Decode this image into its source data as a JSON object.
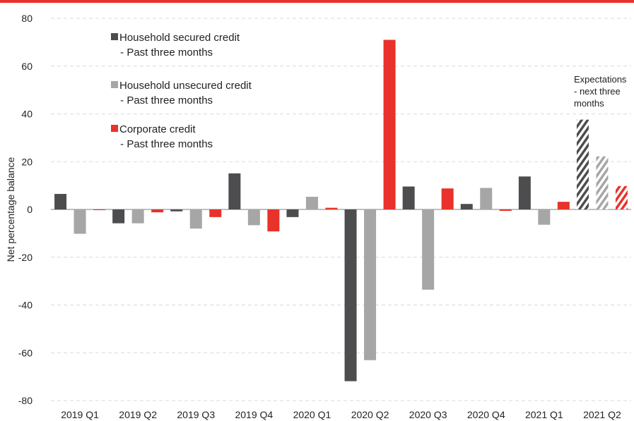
{
  "chart_data": {
    "type": "bar",
    "title": "",
    "xlabel": "",
    "ylabel": "Net percentage balance",
    "ylim": [
      -80,
      80
    ],
    "yticks": [
      -80,
      -60,
      -40,
      -20,
      0,
      20,
      40,
      60,
      80
    ],
    "grid": true,
    "categories": [
      "2019 Q1",
      "2019 Q2",
      "2019 Q3",
      "2019 Q4",
      "2020 Q1",
      "2020 Q2",
      "2020 Q3",
      "2020 Q4",
      "2021 Q1",
      "2021 Q2"
    ],
    "series": [
      {
        "name": "Household secured credit",
        "sub": "- Past three months",
        "color": "#4d4d4f",
        "values": [
          6.5,
          -5.8,
          -0.8,
          15.1,
          -3.2,
          -71.9,
          9.6,
          2.3,
          13.8,
          37.6
        ]
      },
      {
        "name": "Household unsecured credit",
        "sub": "- Past three months",
        "color": "#a6a6a6",
        "values": [
          -10.2,
          -5.8,
          -8.0,
          -6.6,
          5.3,
          -63.1,
          -33.6,
          9.0,
          -6.4,
          22.2
        ]
      },
      {
        "name": "Corporate credit",
        "sub": "- Past three months",
        "color": "#e8322b",
        "values": [
          -0.3,
          -1.2,
          -3.2,
          -9.2,
          0.7,
          71.0,
          8.8,
          -0.6,
          3.2,
          9.8
        ]
      }
    ],
    "hatched_category": "2021 Q2",
    "legend_position": "top-left",
    "annotation": [
      "Expectations",
      "- next three",
      "months"
    ]
  }
}
